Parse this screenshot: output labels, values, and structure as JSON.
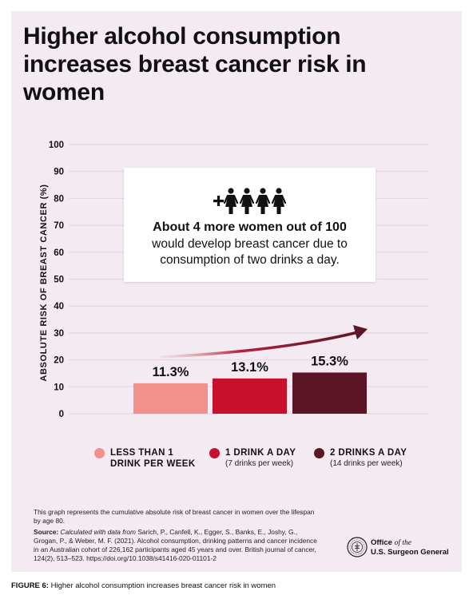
{
  "title": "Higher alcohol consumption increases breast cancer risk in women",
  "callout": {
    "bold": "About 4 more women out of 100",
    "rest": "would develop breast cancer due to consumption of two drinks a day.",
    "icons": [
      "plus-icon",
      "woman-icon",
      "woman-icon",
      "woman-icon",
      "woman-icon"
    ]
  },
  "legend": [
    {
      "label": "LESS THAN 1",
      "label2": "DRINK PER WEEK",
      "sub": ""
    },
    {
      "label": "1 DRINK A DAY",
      "label2": "",
      "sub": "(7 drinks per week)"
    },
    {
      "label": "2 DRINKS A DAY",
      "label2": "",
      "sub": "(14 drinks per week)"
    }
  ],
  "note": {
    "text": "This graph represents the cumulative absolute risk of breast cancer in women over the lifespan by age 80.",
    "source_label": "Source:",
    "source_italic": "Calculated with data from",
    "source_rest": " Sarich, P., Canfell, K., Egger, S., Banks, E., Joshy, G., Grogan, P., & Weber, M. F. (2021). Alcohol consumption, drinking patterns and cancer incidence in an Australian cohort of 226,162 participants aged 45 years and over. British journal of cancer, 124(2), 513–523. https://doi.org/10.1038/s41416-020-01101-2"
  },
  "logo": {
    "line1": "Office",
    "line1_italic": "of the",
    "line2": "U.S. Surgeon General"
  },
  "caption": {
    "label": "FIGURE 6:",
    "text": " Higher alcohol consumption increases breast cancer risk in women"
  },
  "chart_data": {
    "type": "bar",
    "categories": [
      "LESS THAN 1 DRINK PER WEEK",
      "1 DRINK A DAY",
      "2 DRINKS A DAY"
    ],
    "values": [
      11.3,
      13.1,
      15.3
    ],
    "value_labels": [
      "11.3%",
      "13.1%",
      "15.3%"
    ],
    "colors": [
      "#f2908e",
      "#c8102e",
      "#5a1626"
    ],
    "title": "Higher alcohol consumption increases breast cancer risk in women",
    "ylabel": "ABSOLUTE RISK OF BREAST CANCER (%)",
    "xlabel": "",
    "ylim": [
      0,
      100
    ],
    "yticks": [
      0,
      10,
      20,
      30,
      40,
      50,
      60,
      70,
      80,
      90,
      100
    ],
    "grid": true,
    "legend": "bottom"
  }
}
